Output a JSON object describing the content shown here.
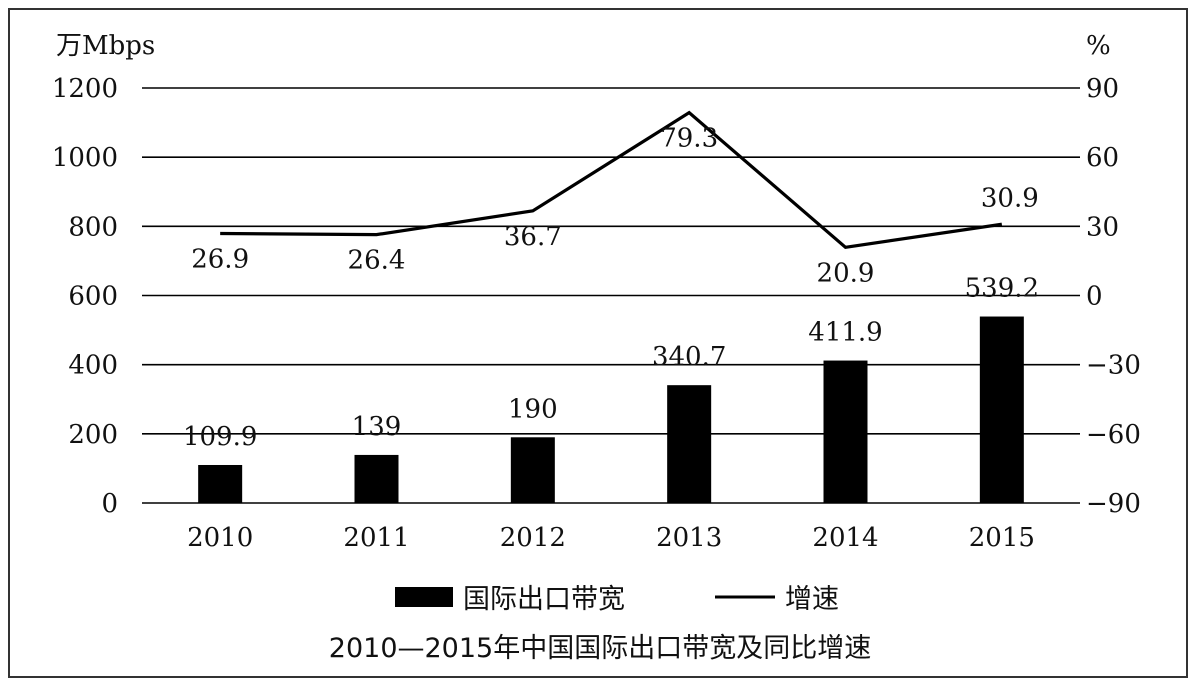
{
  "chart_data": {
    "type": "bar",
    "categories": [
      "2010",
      "2011",
      "2012",
      "2013",
      "2014",
      "2015"
    ],
    "series": [
      {
        "name": "国际出口带宽",
        "type": "bar",
        "axis": "left",
        "values": [
          109.9,
          139,
          190,
          340.7,
          411.9,
          539.2
        ],
        "labels": [
          "109.9",
          "139",
          "190",
          "340.7",
          "411.9",
          "539.2"
        ]
      },
      {
        "name": "增速",
        "type": "line",
        "axis": "right",
        "values": [
          26.9,
          26.4,
          36.7,
          79.3,
          20.9,
          30.9
        ],
        "labels": [
          "26.9",
          "26.4",
          "36.7",
          "79.3",
          "20.9",
          "30.9"
        ]
      }
    ],
    "y_left": {
      "unit": "万Mbps",
      "min": 0,
      "max": 1200,
      "ticks": [
        "0",
        "200",
        "400",
        "600",
        "800",
        "1000",
        "1200"
      ]
    },
    "y_right": {
      "unit": "%",
      "min": -90,
      "max": 90,
      "ticks": [
        "−90",
        "−60",
        "−30",
        "0",
        "30",
        "60",
        "90"
      ]
    },
    "grid": "horizontal",
    "legend": "bottom",
    "caption": "2010—2015年中国国际出口带宽及同比增速",
    "colors": {
      "bar": "#000000",
      "line": "#000000",
      "grid": "#000000"
    }
  }
}
